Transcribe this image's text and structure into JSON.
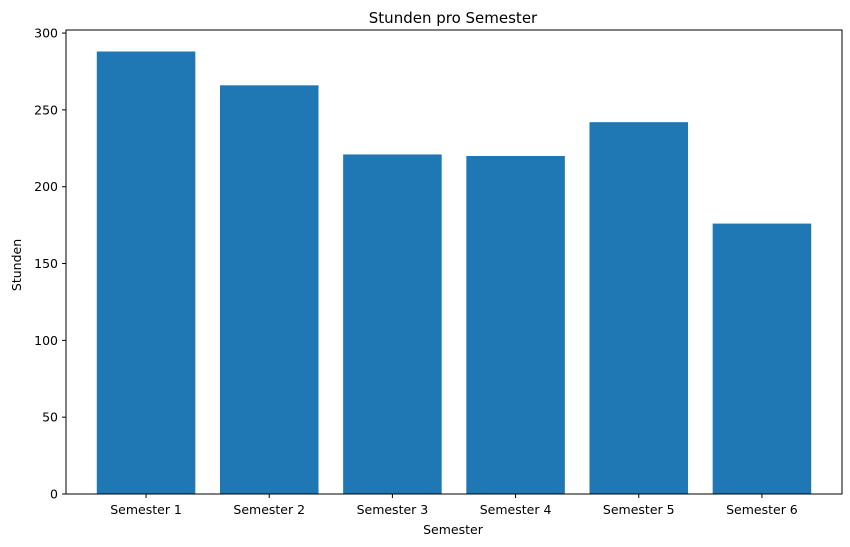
{
  "chart_data": {
    "type": "bar",
    "title": "Stunden pro Semester",
    "xlabel": "Semester",
    "ylabel": "Stunden",
    "categories": [
      "Semester 1",
      "Semester 2",
      "Semester 3",
      "Semester 4",
      "Semester 5",
      "Semester 6"
    ],
    "values": [
      288,
      266,
      221,
      220,
      242,
      176
    ],
    "ylim": [
      0,
      302
    ],
    "yticks": [
      0,
      50,
      100,
      150,
      200,
      250,
      300
    ],
    "grid": false,
    "legend": "none",
    "bar_color": "#1f77b4"
  }
}
